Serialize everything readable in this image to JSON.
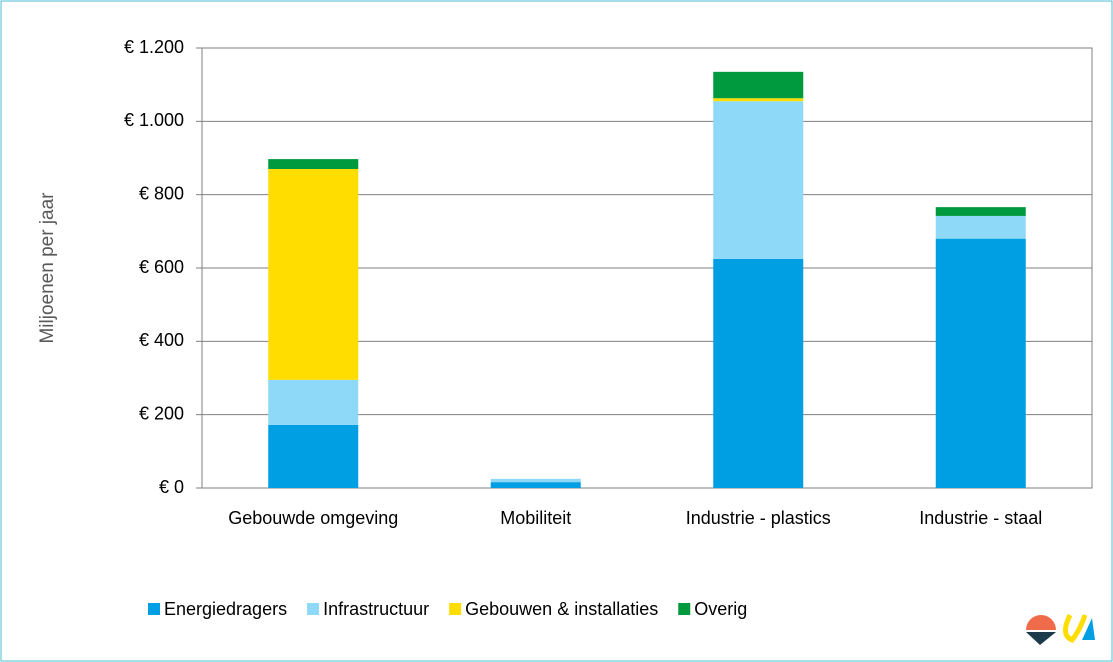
{
  "chart_data": {
    "type": "stacked_bar",
    "y_label": "Miljoenen per jaar",
    "categories": [
      "Gebouwde omgeving",
      "Mobiliteit",
      "Industrie - plastics",
      "Industrie - staal"
    ],
    "series": [
      {
        "name": "Energiedragers",
        "color": "#009fe3",
        "values": [
          172,
          16,
          625,
          680
        ]
      },
      {
        "name": "Infrastructuur",
        "color": "#8ed8f8",
        "values": [
          123,
          9,
          430,
          62
        ]
      },
      {
        "name": "Gebouwen & installaties",
        "color": "#ffdd00",
        "values": [
          575,
          0,
          8,
          0
        ]
      },
      {
        "name": "Overig",
        "color": "#009a3e",
        "values": [
          27,
          0,
          72,
          24
        ]
      }
    ],
    "ylim": [
      0,
      1200
    ],
    "yticks": [
      {
        "value": 0,
        "label": "€ 0"
      },
      {
        "value": 200,
        "label": "€ 200"
      },
      {
        "value": 400,
        "label": "€ 400"
      },
      {
        "value": 600,
        "label": "€ 600"
      },
      {
        "value": 800,
        "label": "€ 800"
      },
      {
        "value": 1000,
        "label": "€ 1.000"
      },
      {
        "value": 1200,
        "label": "€ 1.200"
      }
    ],
    "grid": true,
    "legend": "bottom"
  }
}
